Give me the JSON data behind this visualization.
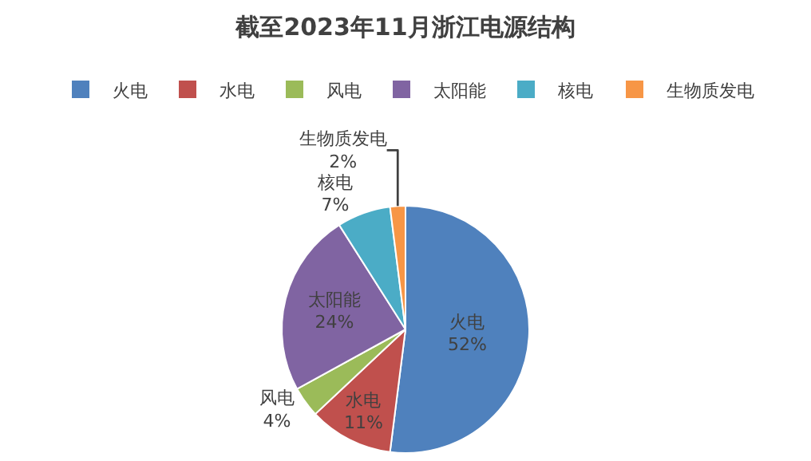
{
  "chart_data": {
    "type": "pie",
    "title": "截至2023年11月浙江电源结构",
    "categories": [
      "火电",
      "水电",
      "风电",
      "太阳能",
      "核电",
      "生物质发电"
    ],
    "values": [
      52,
      11,
      4,
      24,
      7,
      2
    ],
    "value_labels": [
      "52%",
      "11%",
      "4%",
      "24%",
      "7%",
      "2%"
    ],
    "colors": [
      "#4f81bd",
      "#c0504d",
      "#9bbb59",
      "#8064a2",
      "#4bacc6",
      "#f79646"
    ],
    "legend": "top"
  }
}
